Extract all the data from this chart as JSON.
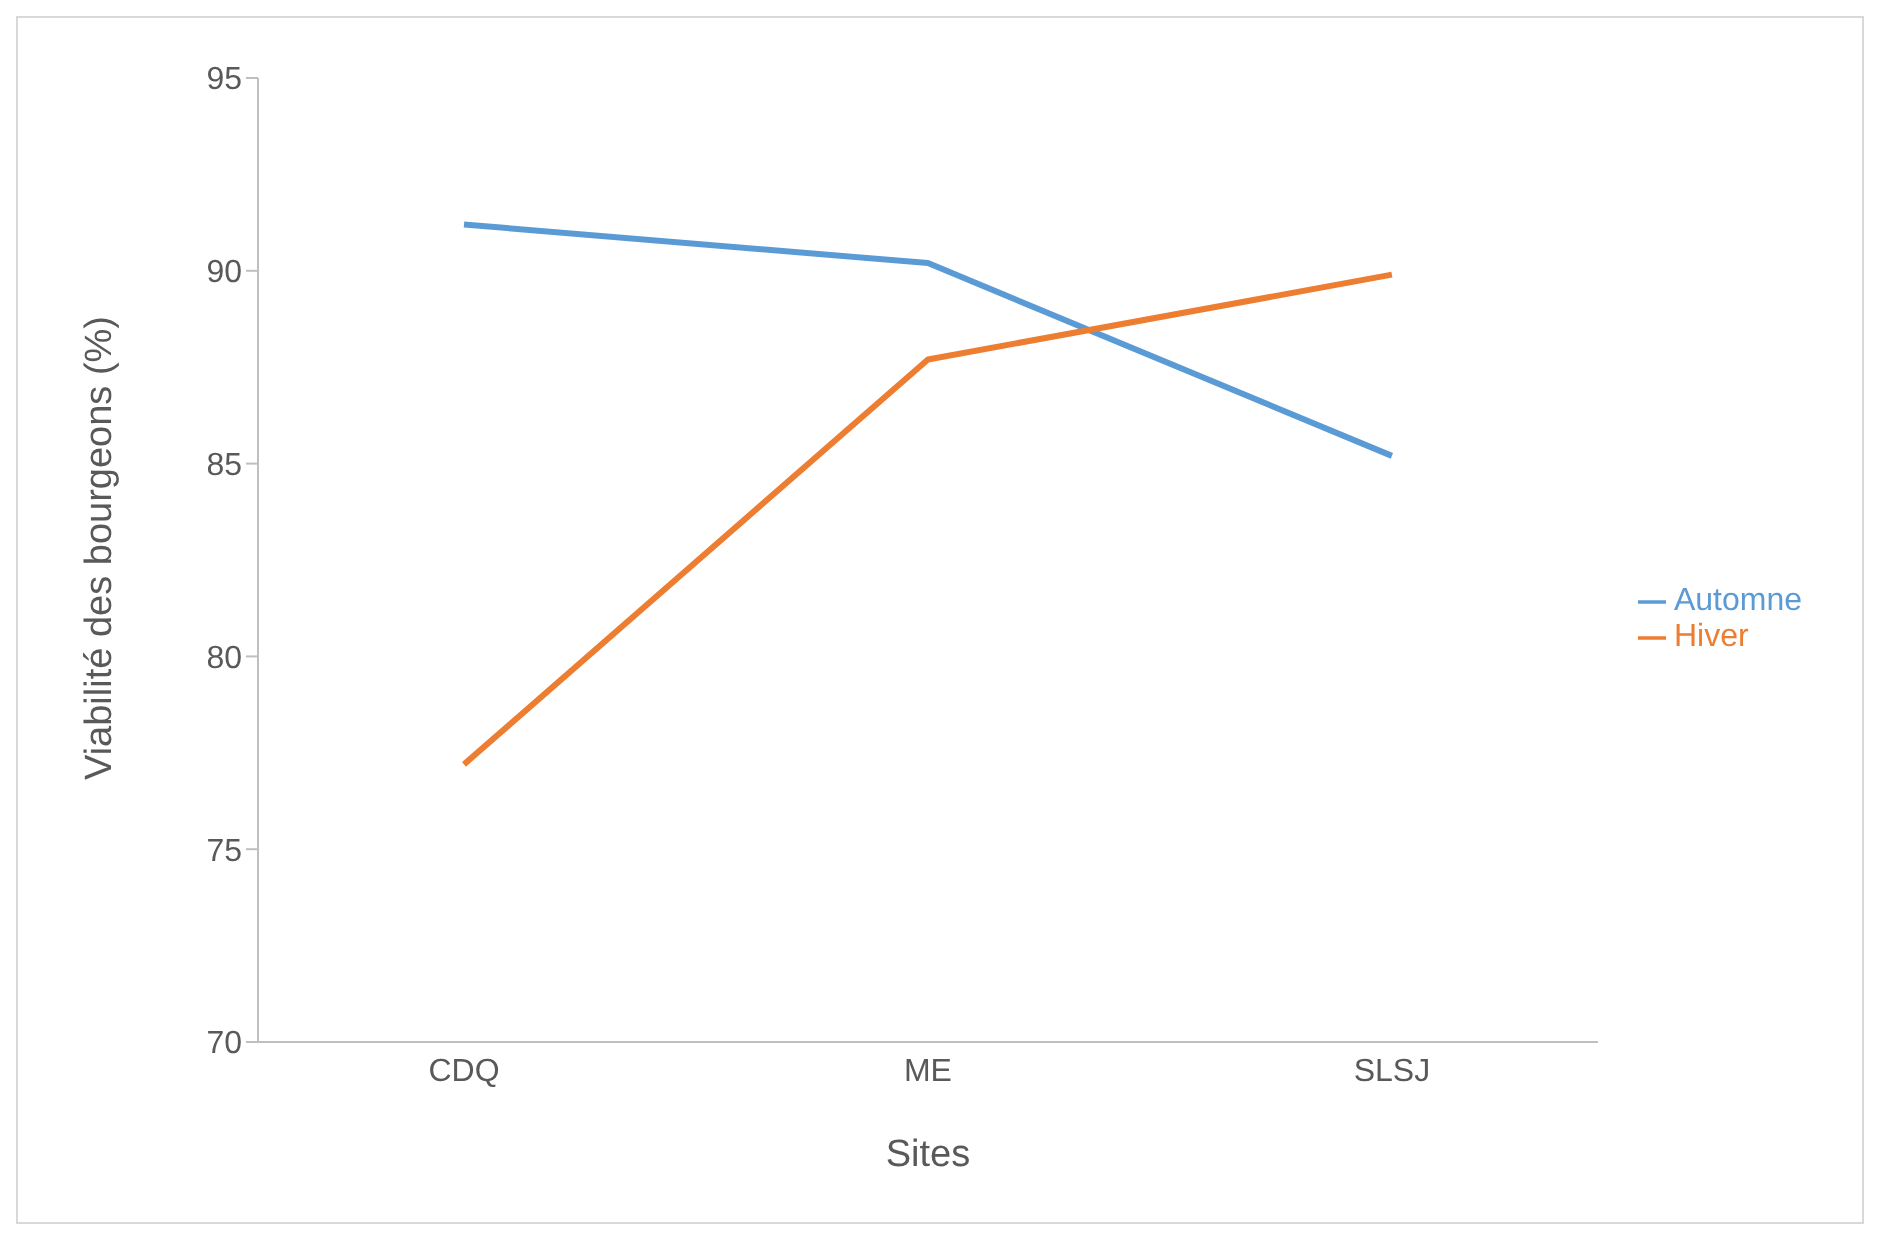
{
  "chart_data": {
    "type": "line",
    "xlabel": "Sites",
    "ylabel": "Viabilité des bourgeons (%)",
    "categories": [
      "CDQ",
      "ME",
      "SLSJ"
    ],
    "series": [
      {
        "name": "Automne",
        "color": "#5b9bd5",
        "values": [
          91.2,
          90.2,
          85.2
        ]
      },
      {
        "name": "Hiver",
        "color": "#ed7d31",
        "values": [
          77.2,
          87.7,
          89.9
        ]
      }
    ],
    "ylim": [
      70,
      95
    ],
    "yticks": [
      70,
      75,
      80,
      85,
      90,
      95
    ],
    "grid": false,
    "legend": "right",
    "marker": "none",
    "line_style": "solid"
  }
}
